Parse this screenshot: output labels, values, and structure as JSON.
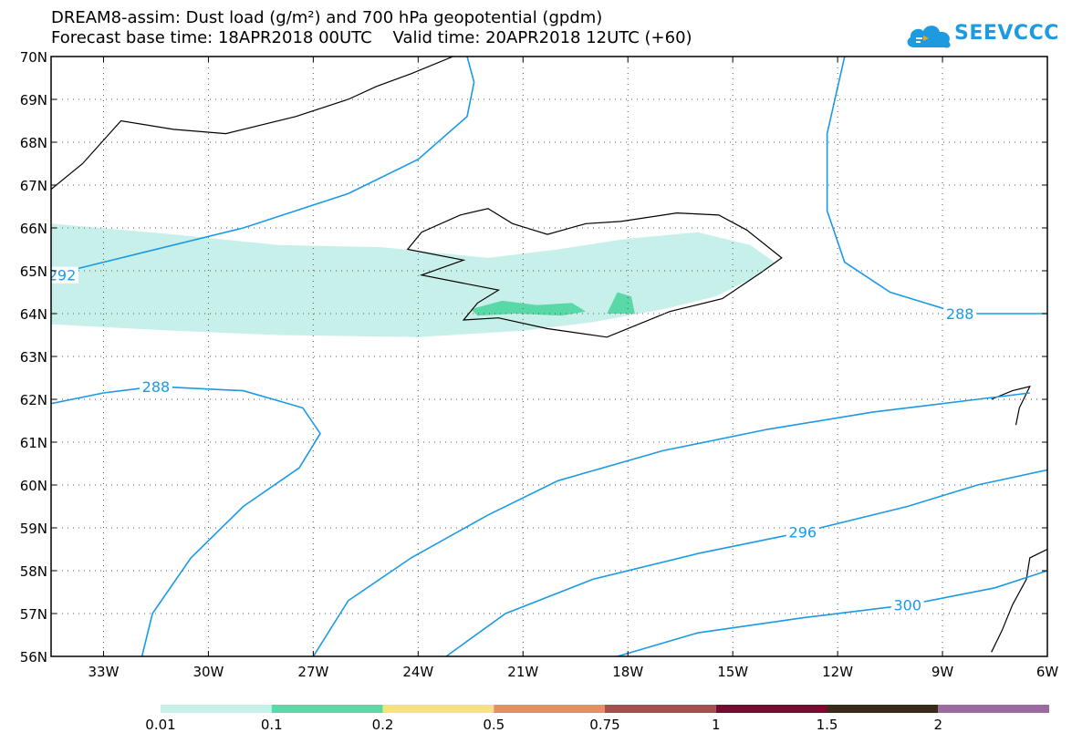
{
  "header": {
    "title_line1": "DREAM8-assim: Dust load (g/m²) and 700 hPa geopotential (gpdm)",
    "title_line2": "Forecast base time: 18APR2018 00UTC    Valid time: 20APR2018 12UTC (+60)"
  },
  "logo": {
    "text": "SEEVCCC",
    "icon": "cloud-icon"
  },
  "chart_data": {
    "type": "contour-map",
    "projection": "lat-lon",
    "xlim": [
      -34.5,
      -6
    ],
    "ylim": [
      56,
      70
    ],
    "x_ticks": [
      {
        "value": -33,
        "label": "33W"
      },
      {
        "value": -30,
        "label": "30W"
      },
      {
        "value": -27,
        "label": "27W"
      },
      {
        "value": -24,
        "label": "24W"
      },
      {
        "value": -21,
        "label": "21W"
      },
      {
        "value": -18,
        "label": "18W"
      },
      {
        "value": -15,
        "label": "15W"
      },
      {
        "value": -12,
        "label": "12W"
      },
      {
        "value": -9,
        "label": "9W"
      },
      {
        "value": -6,
        "label": "6W"
      }
    ],
    "y_ticks": [
      {
        "value": 56,
        "label": "56N"
      },
      {
        "value": 57,
        "label": "57N"
      },
      {
        "value": 58,
        "label": "58N"
      },
      {
        "value": 59,
        "label": "59N"
      },
      {
        "value": 60,
        "label": "60N"
      },
      {
        "value": 61,
        "label": "61N"
      },
      {
        "value": 62,
        "label": "62N"
      },
      {
        "value": 63,
        "label": "63N"
      },
      {
        "value": 64,
        "label": "64N"
      },
      {
        "value": 65,
        "label": "65N"
      },
      {
        "value": 66,
        "label": "66N"
      },
      {
        "value": 67,
        "label": "67N"
      },
      {
        "value": 68,
        "label": "68N"
      },
      {
        "value": 69,
        "label": "69N"
      },
      {
        "value": 70,
        "label": "70N"
      }
    ],
    "grid": true,
    "colorbar": {
      "levels": [
        "0.01",
        "0.1",
        "0.2",
        "0.5",
        "0.75",
        "1",
        "1.5",
        "2"
      ],
      "colors": [
        "#c8f0ea",
        "#5ad9a8",
        "#f5e27a",
        "#e88c6a",
        "#a0524e",
        "#7a0a30",
        "#3a2a1a",
        "#9a6aa0"
      ],
      "position": "bottom"
    },
    "dust_fields": [
      {
        "level": "0.01",
        "color": "#c8f0ea",
        "polygon": [
          [
            -34.5,
            66.1
          ],
          [
            -31,
            65.85
          ],
          [
            -28,
            65.6
          ],
          [
            -25,
            65.55
          ],
          [
            -22,
            65.3
          ],
          [
            -20,
            65.5
          ],
          [
            -18,
            65.75
          ],
          [
            -16,
            65.9
          ],
          [
            -14.5,
            65.6
          ],
          [
            -13.8,
            65.2
          ],
          [
            -14.5,
            64.8
          ],
          [
            -15.5,
            64.4
          ],
          [
            -17,
            64.1
          ],
          [
            -19,
            63.8
          ],
          [
            -21,
            63.6
          ],
          [
            -24,
            63.45
          ],
          [
            -28,
            63.5
          ],
          [
            -31,
            63.6
          ],
          [
            -34.5,
            63.75
          ]
        ]
      },
      {
        "level": "0.1",
        "color": "#5ad9a8",
        "polygon": [
          [
            -22.5,
            64.1
          ],
          [
            -21.6,
            64.3
          ],
          [
            -20.6,
            64.2
          ],
          [
            -19.6,
            64.25
          ],
          [
            -19.2,
            64.05
          ],
          [
            -19.9,
            63.95
          ],
          [
            -21.2,
            64.0
          ],
          [
            -22.3,
            63.95
          ]
        ]
      },
      {
        "level": "0.1",
        "color": "#5ad9a8",
        "polygon": [
          [
            -18.6,
            64.0
          ],
          [
            -18.3,
            64.5
          ],
          [
            -17.9,
            64.4
          ],
          [
            -17.8,
            64.0
          ]
        ]
      }
    ],
    "contours": [
      {
        "label": "292",
        "points": [
          [
            -34.5,
            64.9
          ],
          [
            -32,
            65.4
          ],
          [
            -29,
            66.0
          ],
          [
            -26,
            66.8
          ],
          [
            -24,
            67.6
          ],
          [
            -22.6,
            68.6
          ],
          [
            -22.4,
            69.4
          ],
          [
            -22.6,
            70
          ]
        ]
      },
      {
        "label": "288",
        "points": [
          [
            -34.5,
            61.9
          ],
          [
            -33,
            62.15
          ],
          [
            -31.5,
            62.3
          ],
          [
            -29,
            62.2
          ],
          [
            -27.3,
            61.8
          ],
          [
            -26.8,
            61.2
          ],
          [
            -27.4,
            60.4
          ],
          [
            -29,
            59.5
          ],
          [
            -30.5,
            58.3
          ],
          [
            -31.6,
            57.0
          ],
          [
            -31.9,
            56
          ]
        ]
      },
      {
        "label": "",
        "points": [
          [
            -27,
            56
          ],
          [
            -26,
            57.3
          ],
          [
            -24.2,
            58.3
          ],
          [
            -22,
            59.3
          ],
          [
            -20,
            60.1
          ],
          [
            -17,
            60.8
          ],
          [
            -14,
            61.3
          ],
          [
            -11,
            61.7
          ],
          [
            -8,
            62.0
          ],
          [
            -6.5,
            62.15
          ]
        ]
      },
      {
        "label": "296",
        "points": [
          [
            -23.2,
            56
          ],
          [
            -21.5,
            57.0
          ],
          [
            -19,
            57.8
          ],
          [
            -16,
            58.4
          ],
          [
            -13,
            58.9
          ],
          [
            -10,
            59.5
          ],
          [
            -8,
            60.0
          ],
          [
            -6,
            60.35
          ]
        ]
      },
      {
        "label": "300",
        "points": [
          [
            -18.3,
            56
          ],
          [
            -16,
            56.55
          ],
          [
            -13,
            56.9
          ],
          [
            -10,
            57.2
          ],
          [
            -7.5,
            57.6
          ],
          [
            -6,
            58.0
          ]
        ]
      },
      {
        "label": "288",
        "points": [
          [
            -11.8,
            70
          ],
          [
            -12.3,
            68.2
          ],
          [
            -12.3,
            66.4
          ],
          [
            -11.8,
            65.2
          ],
          [
            -10.5,
            64.5
          ],
          [
            -8.5,
            64.0
          ],
          [
            -6,
            64.0
          ]
        ]
      }
    ]
  }
}
